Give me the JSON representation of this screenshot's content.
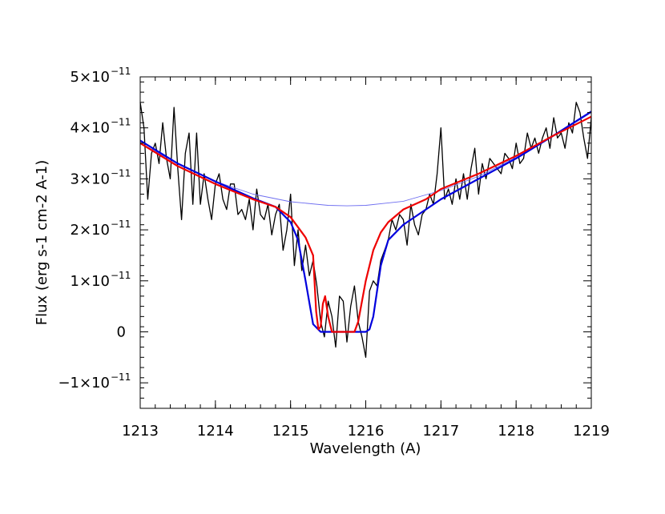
{
  "chart_data": {
    "type": "line",
    "xlabel": "Wavelength (A)",
    "ylabel": "Flux (erg s-1 cm-2 A-1)",
    "xlim": [
      1213,
      1219
    ],
    "ylim": [
      -1.5e-11,
      5e-11
    ],
    "x_ticks": [
      1213,
      1214,
      1215,
      1216,
      1217,
      1218,
      1219
    ],
    "y_ticks": [
      {
        "value": 5e-11,
        "mantissa": "5×10",
        "exp": "−11"
      },
      {
        "value": 4e-11,
        "mantissa": "4×10",
        "exp": "−11"
      },
      {
        "value": 3e-11,
        "mantissa": "3×10",
        "exp": "−11"
      },
      {
        "value": 2e-11,
        "mantissa": "2×10",
        "exp": "−11"
      },
      {
        "value": 1e-11,
        "mantissa": "1×10",
        "exp": "−11"
      },
      {
        "value": 0,
        "mantissa": "0",
        "exp": ""
      },
      {
        "value": -1e-11,
        "mantissa": "−1×10",
        "exp": "−11"
      }
    ],
    "grid": false,
    "legend": "none",
    "series": [
      {
        "color": "#000000",
        "x": [
          1213.0,
          1213.05,
          1213.1,
          1213.15,
          1213.2,
          1213.25,
          1213.3,
          1213.35,
          1213.4,
          1213.45,
          1213.5,
          1213.55,
          1213.6,
          1213.65,
          1213.7,
          1213.75,
          1213.8,
          1213.85,
          1213.9,
          1213.95,
          1214.0,
          1214.05,
          1214.1,
          1214.15,
          1214.2,
          1214.25,
          1214.3,
          1214.35,
          1214.4,
          1214.45,
          1214.5,
          1214.55,
          1214.6,
          1214.65,
          1214.7,
          1214.75,
          1214.8,
          1214.85,
          1214.9,
          1214.95,
          1215.0,
          1215.05,
          1215.1,
          1215.15,
          1215.2,
          1215.25,
          1215.3,
          1215.35,
          1215.4,
          1215.45,
          1215.5,
          1215.55,
          1215.6,
          1215.65,
          1215.7,
          1215.75,
          1215.8,
          1215.85,
          1215.9,
          1215.95,
          1216.0,
          1216.05,
          1216.1,
          1216.15,
          1216.2,
          1216.25,
          1216.3,
          1216.35,
          1216.4,
          1216.45,
          1216.5,
          1216.55,
          1216.6,
          1216.65,
          1216.7,
          1216.75,
          1216.8,
          1216.85,
          1216.9,
          1216.95,
          1217.0,
          1217.05,
          1217.1,
          1217.15,
          1217.2,
          1217.25,
          1217.3,
          1217.35,
          1217.4,
          1217.45,
          1217.5,
          1217.55,
          1217.6,
          1217.65,
          1217.7,
          1217.75,
          1217.8,
          1217.85,
          1217.9,
          1217.95,
          1218.0,
          1218.05,
          1218.1,
          1218.15,
          1218.2,
          1218.25,
          1218.3,
          1218.35,
          1218.4,
          1218.45,
          1218.5,
          1218.55,
          1218.6,
          1218.65,
          1218.7,
          1218.75,
          1218.8,
          1218.85,
          1218.9,
          1218.95,
          1219.0
        ],
        "y": [
          4.5e-11,
          4e-11,
          2.6e-11,
          3.5e-11,
          3.7e-11,
          3.3e-11,
          4.1e-11,
          3.4e-11,
          3e-11,
          4.4e-11,
          3.2e-11,
          2.2e-11,
          3.5e-11,
          3.9e-11,
          2.5e-11,
          3.9e-11,
          2.5e-11,
          3.1e-11,
          2.6e-11,
          2.2e-11,
          2.9e-11,
          3.1e-11,
          2.6e-11,
          2.4e-11,
          2.9e-11,
          2.9e-11,
          2.3e-11,
          2.4e-11,
          2.2e-11,
          2.6e-11,
          2e-11,
          2.8e-11,
          2.3e-11,
          2.2e-11,
          2.5e-11,
          1.9e-11,
          2.3e-11,
          2.5e-11,
          1.6e-11,
          2e-11,
          2.7e-11,
          1.3e-11,
          2e-11,
          1.2e-11,
          1.7e-11,
          1.1e-11,
          1.4e-11,
          9e-12,
          2e-12,
          -1e-12,
          6e-12,
          3e-12,
          -3e-12,
          7e-12,
          6e-12,
          -2e-12,
          5e-12,
          9e-12,
          2e-12,
          -1e-12,
          -5e-12,
          8e-12,
          1e-11,
          9e-12,
          1.4e-11,
          1.6e-11,
          1.8e-11,
          2.2e-11,
          2e-11,
          2.3e-11,
          2.2e-11,
          1.7e-11,
          2.5e-11,
          2.1e-11,
          1.9e-11,
          2.3e-11,
          2.4e-11,
          2.7e-11,
          2.5e-11,
          3.1e-11,
          4e-11,
          2.6e-11,
          2.8e-11,
          2.5e-11,
          3e-11,
          2.6e-11,
          3.1e-11,
          2.6e-11,
          3.2e-11,
          3.6e-11,
          2.7e-11,
          3.3e-11,
          3e-11,
          3.4e-11,
          3.3e-11,
          3.2e-11,
          3.1e-11,
          3.5e-11,
          3.4e-11,
          3.2e-11,
          3.7e-11,
          3.3e-11,
          3.4e-11,
          3.9e-11,
          3.6e-11,
          3.8e-11,
          3.5e-11,
          3.8e-11,
          4e-11,
          3.6e-11,
          4.2e-11,
          3.8e-11,
          3.9e-11,
          3.6e-11,
          4.1e-11,
          3.9e-11,
          4.5e-11,
          4.3e-11,
          3.8e-11,
          3.4e-11,
          4.2e-11
        ]
      },
      {
        "color": "#6e6ef0",
        "x": [
          1213.0,
          1213.5,
          1214.0,
          1214.5,
          1215.0,
          1215.5,
          1215.75,
          1216.0,
          1216.5,
          1217.0,
          1217.5,
          1218.0,
          1218.5,
          1219.0
        ],
        "y": [
          3.7e-11,
          3.3e-11,
          2.95e-11,
          2.7e-11,
          2.55e-11,
          2.48e-11,
          2.47e-11,
          2.48e-11,
          2.56e-11,
          2.77e-11,
          3.05e-11,
          3.42e-11,
          3.84e-11,
          4.3e-11
        ]
      },
      {
        "color": "#0000dd",
        "x": [
          1213.0,
          1213.5,
          1214.0,
          1214.5,
          1214.8,
          1215.0,
          1215.1,
          1215.2,
          1215.3,
          1215.4,
          1215.5,
          1215.7,
          1215.9,
          1216.0,
          1216.05,
          1216.1,
          1216.2,
          1216.3,
          1216.5,
          1216.8,
          1217.0,
          1217.5,
          1218.0,
          1218.5,
          1219.0
        ],
        "y": [
          3.75e-11,
          3.3e-11,
          2.95e-11,
          2.62e-11,
          2.45e-11,
          2.15e-11,
          1.8e-11,
          1e-11,
          1.5e-12,
          0,
          0,
          0,
          0,
          0,
          5e-13,
          3e-12,
          1.3e-11,
          1.8e-11,
          2.1e-11,
          2.4e-11,
          2.6e-11,
          3e-11,
          3.4e-11,
          3.85e-11,
          4.32e-11
        ]
      },
      {
        "color": "#ee0000",
        "x": [
          1213.0,
          1213.5,
          1214.0,
          1214.5,
          1214.8,
          1215.0,
          1215.2,
          1215.3,
          1215.34,
          1215.37,
          1215.4,
          1215.43,
          1215.46,
          1215.5,
          1215.55,
          1215.6,
          1215.8,
          1215.85,
          1215.9,
          1215.95,
          1216.0,
          1216.1,
          1216.2,
          1216.3,
          1216.5,
          1216.8,
          1217.0,
          1217.5,
          1218.0,
          1218.5,
          1219.0
        ],
        "y": [
          3.7e-11,
          3.25e-11,
          2.9e-11,
          2.6e-11,
          2.45e-11,
          2.25e-11,
          1.85e-11,
          1.5e-11,
          4e-12,
          5e-13,
          1e-12,
          5.5e-12,
          7e-12,
          3e-12,
          0,
          0,
          0,
          0,
          2e-12,
          6e-12,
          1e-11,
          1.6e-11,
          1.95e-11,
          2.15e-11,
          2.4e-11,
          2.6e-11,
          2.8e-11,
          3.1e-11,
          3.45e-11,
          3.85e-11,
          4.22e-11
        ]
      }
    ]
  }
}
